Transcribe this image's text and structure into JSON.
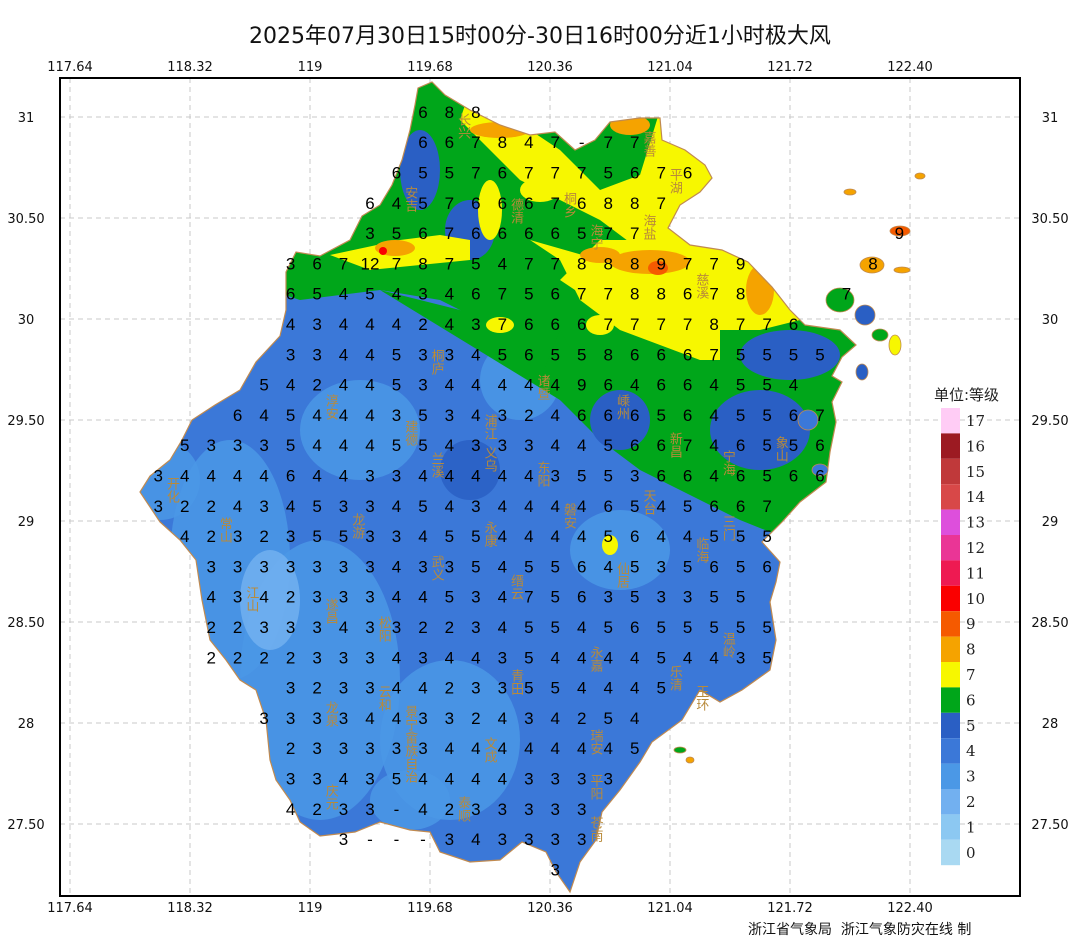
{
  "title": "2025年07月30日15时00分-30日16时00分近1小时极大风",
  "footer": "浙江省气象局  浙江气象防灾在线 制",
  "axes": {
    "lon_ticks": [
      "117.64",
      "118.32",
      "119",
      "119.68",
      "120.36",
      "121.04",
      "121.72",
      "122.40"
    ],
    "lat_ticks": [
      "31",
      "30.50",
      "30",
      "29.50",
      "29",
      "28.50",
      "28",
      "27.50"
    ],
    "lon_values": [
      117.64,
      118.32,
      119.0,
      119.68,
      120.36,
      121.04,
      121.72,
      122.4
    ],
    "lat_values": [
      31,
      30.5,
      30,
      29.5,
      29,
      28.5,
      28,
      27.5
    ],
    "grid": true
  },
  "legend": {
    "title": "单位:等级",
    "levels": [
      {
        "label": "17",
        "color": "#ffccf5"
      },
      {
        "label": "16",
        "color": "#9c1a22"
      },
      {
        "label": "15",
        "color": "#c0393a"
      },
      {
        "label": "14",
        "color": "#d84848"
      },
      {
        "label": "13",
        "color": "#dd4fdc"
      },
      {
        "label": "12",
        "color": "#ea3596"
      },
      {
        "label": "11",
        "color": "#ee1a52"
      },
      {
        "label": "10",
        "color": "#fa0000"
      },
      {
        "label": "9",
        "color": "#f55a00"
      },
      {
        "label": "8",
        "color": "#f5a300"
      },
      {
        "label": "7",
        "color": "#f7f700"
      },
      {
        "label": "6",
        "color": "#00a61a"
      },
      {
        "label": "5",
        "color": "#2a5fc4"
      },
      {
        "label": "4",
        "color": "#3b78d8"
      },
      {
        "label": "3",
        "color": "#4b98e6"
      },
      {
        "label": "2",
        "color": "#72b0f0"
      },
      {
        "label": "1",
        "color": "#8cc8f2"
      },
      {
        "label": "0",
        "color": "#a9d9f2"
      }
    ]
  },
  "cities": [
    {
      "name": "长兴",
      "lon": 119.92,
      "lat": 30.95
    },
    {
      "name": "安吉",
      "lon": 119.6,
      "lat": 30.59
    },
    {
      "name": "德清",
      "lon": 120.12,
      "lat": 30.53
    },
    {
      "name": "桐乡",
      "lon": 120.4,
      "lat": 30.56
    },
    {
      "name": "嘉善",
      "lon": 120.98,
      "lat": 30.86
    },
    {
      "name": "平湖",
      "lon": 121.02,
      "lat": 30.68
    },
    {
      "name": "海盐",
      "lon": 120.9,
      "lat": 30.45
    },
    {
      "name": "海宁",
      "lon": 120.6,
      "lat": 30.4
    },
    {
      "name": "慈溪",
      "lon": 121.27,
      "lat": 30.16
    },
    {
      "name": "桐庐",
      "lon": 119.65,
      "lat": 29.78
    },
    {
      "name": "淳安",
      "lon": 119.05,
      "lat": 29.56
    },
    {
      "name": "建德",
      "lon": 119.55,
      "lat": 29.43
    },
    {
      "name": "浦江",
      "lon": 119.98,
      "lat": 29.46
    },
    {
      "name": "诸暨",
      "lon": 120.37,
      "lat": 29.66
    },
    {
      "name": "嵊州",
      "lon": 120.83,
      "lat": 29.56
    },
    {
      "name": "新昌",
      "lon": 121.0,
      "lat": 29.37
    },
    {
      "name": "义乌",
      "lon": 120.08,
      "lat": 29.3
    },
    {
      "name": "兰溪",
      "lon": 119.72,
      "lat": 29.27
    },
    {
      "name": "东阳",
      "lon": 120.33,
      "lat": 29.23
    },
    {
      "name": "开化",
      "lon": 118.2,
      "lat": 29.15
    },
    {
      "name": "常山",
      "lon": 118.55,
      "lat": 28.95
    },
    {
      "name": "龙游",
      "lon": 119.2,
      "lat": 28.97
    },
    {
      "name": "磐安",
      "lon": 120.5,
      "lat": 29.02
    },
    {
      "name": "天台",
      "lon": 120.99,
      "lat": 29.09
    },
    {
      "name": "宁海",
      "lon": 121.43,
      "lat": 29.28
    },
    {
      "name": "象山",
      "lon": 121.72,
      "lat": 29.35
    },
    {
      "name": "三门",
      "lon": 121.38,
      "lat": 28.96
    },
    {
      "name": "永康",
      "lon": 120.02,
      "lat": 28.93
    },
    {
      "name": "临海",
      "lon": 121.18,
      "lat": 28.85
    },
    {
      "name": "仙居",
      "lon": 120.72,
      "lat": 28.73
    },
    {
      "name": "武义",
      "lon": 119.75,
      "lat": 28.76
    },
    {
      "name": "缙云",
      "lon": 120.18,
      "lat": 28.67
    },
    {
      "name": "江山",
      "lon": 118.59,
      "lat": 28.61
    },
    {
      "name": "遂昌",
      "lon": 119.07,
      "lat": 28.55
    },
    {
      "name": "松阳",
      "lon": 119.45,
      "lat": 28.46
    },
    {
      "name": "云和",
      "lon": 119.46,
      "lat": 28.12
    },
    {
      "name": "龙泉",
      "lon": 119.07,
      "lat": 28.04
    },
    {
      "name": "景宁畲族自治",
      "lon": 119.4,
      "lat": 27.89
    },
    {
      "name": "青田",
      "lon": 120.19,
      "lat": 28.2
    },
    {
      "name": "永嘉",
      "lon": 120.69,
      "lat": 28.31
    },
    {
      "name": "乐清",
      "lon": 121.01,
      "lat": 28.22
    },
    {
      "name": "温岭",
      "lon": 121.42,
      "lat": 28.38
    },
    {
      "name": "玉环",
      "lon": 121.24,
      "lat": 28.12
    },
    {
      "name": "文成",
      "lon": 119.97,
      "lat": 27.86
    },
    {
      "name": "瑞安",
      "lon": 120.6,
      "lat": 27.9
    },
    {
      "name": "平阳",
      "lon": 120.61,
      "lat": 27.68
    },
    {
      "name": "庆元",
      "lon": 119.1,
      "lat": 27.63
    },
    {
      "name": "泰顺",
      "lon": 119.88,
      "lat": 27.57
    },
    {
      "name": "苍南",
      "lon": 120.62,
      "lat": 27.47
    }
  ],
  "station_rows": [
    {
      "lat": 31.03,
      "lon": 119.64,
      "values": "6 8 8"
    },
    {
      "lat": 30.88,
      "lon": 119.64,
      "values": "6 6 7 8 4 7 - 7 7"
    },
    {
      "lat": 30.73,
      "lon": 119.49,
      "values": "6 5 5 7 6 7 7 7 5 6 7 6"
    },
    {
      "lat": 30.58,
      "lon": 119.34,
      "values": "6 4 5 7 6 6 6 7 6 8 8 7"
    },
    {
      "lat": 30.43,
      "lon": 119.34,
      "values": "3 5 6 7 6 6 6 6 5 7 7"
    },
    {
      "lat": 30.43,
      "lon": 122.34,
      "values": "9"
    },
    {
      "lat": 30.28,
      "lon": 118.89,
      "values": "3 6 7 12 7 8 7 5 4 7 7 8 8 8 9 7 7 9"
    },
    {
      "lat": 30.28,
      "lon": 122.19,
      "values": "8"
    },
    {
      "lat": 30.13,
      "lon": 118.89,
      "values": "6 5 4 5 4 3 4 6 7 5 6 7 7 8 8 6 7 8"
    },
    {
      "lat": 30.13,
      "lon": 122.04,
      "values": "7"
    },
    {
      "lat": 29.98,
      "lon": 118.89,
      "values": "4 3 4 4 4 2 4 3 7 6 6 6 7 7 7 7 8 7 7 6"
    },
    {
      "lat": 29.83,
      "lon": 118.89,
      "values": "3 3 4 4 5 3 3 4 5 6 5 5 8 6 6 6 7 5 5 5 5"
    },
    {
      "lat": 29.68,
      "lon": 118.74,
      "values": "5 4 2 4 4 5 3 4 4 4 4 4 9 6 4 6 6 4 5 5 4"
    },
    {
      "lat": 29.53,
      "lon": 118.59,
      "values": "6 4 5 4 4 4 3 5 3 4 3 2 4 6 6 6 5 6 4 5 5 6 7"
    },
    {
      "lat": 29.38,
      "lon": 118.29,
      "values": "5 3 3 3 5 4 4 4 5 5 4 3 3 3 4 4 5 6 6 7 4 6 5 5 6"
    },
    {
      "lat": 29.23,
      "lon": 118.14,
      "values": "3 4 4 4 4 6 4 4 3 3 4 4 4 4 4 3 5 5 3 6 6 4 6 5 6 6"
    },
    {
      "lat": 29.08,
      "lon": 118.14,
      "values": "3 2 2 4 3 4 5 3 3 4 5 4 3 4 4 4 4 6 5 4 5 6 6 7"
    },
    {
      "lat": 28.93,
      "lon": 118.29,
      "values": "4 2 3 2 3 5 5 3 3 4 5 5 4 4 4 4 5 6 4 4 5 5 5"
    },
    {
      "lat": 28.78,
      "lon": 118.44,
      "values": "3 3 3 3 3 3 3 4 3 3 5 4 5 5 6 4 5 3 5 6 5 6"
    },
    {
      "lat": 28.63,
      "lon": 118.44,
      "values": "4 3 4 2 3 3 3 4 4 5 3 4 7 5 6 3 5 3 3 5 5"
    },
    {
      "lat": 28.48,
      "lon": 118.44,
      "values": "2 2 3 3 3 4 3 3 2 2 3 4 5 5 4 5 6 5 5 5 5 5"
    },
    {
      "lat": 28.33,
      "lon": 118.44,
      "values": "2 2 2 2 3 3 3 4 3 4 4 3 5 4 4 4 4 5 4 4 3 5"
    },
    {
      "lat": 28.18,
      "lon": 118.89,
      "values": "3 2 3 3 4 4 2 3 3 5 5 4 4 4 5"
    },
    {
      "lat": 28.03,
      "lon": 118.74,
      "values": "3 3 3 3 4 4 3 3 2 4 3 4 2 5 4"
    },
    {
      "lat": 27.88,
      "lon": 118.89,
      "values": "2 3 3 3 3 3 4 4 4 4 4 4 4 5"
    },
    {
      "lat": 27.73,
      "lon": 118.89,
      "values": "3 3 4 3 5 4 4 4 4 3 3 3 3"
    },
    {
      "lat": 27.58,
      "lon": 118.89,
      "values": "4 2 3 3 - 4 2 3 3 3 3 3"
    },
    {
      "lat": 27.43,
      "lon": 119.19,
      "values": "3 - - - 3 4 3 3 3 3"
    },
    {
      "lat": 27.28,
      "lon": 120.39,
      "values": "3"
    }
  ]
}
